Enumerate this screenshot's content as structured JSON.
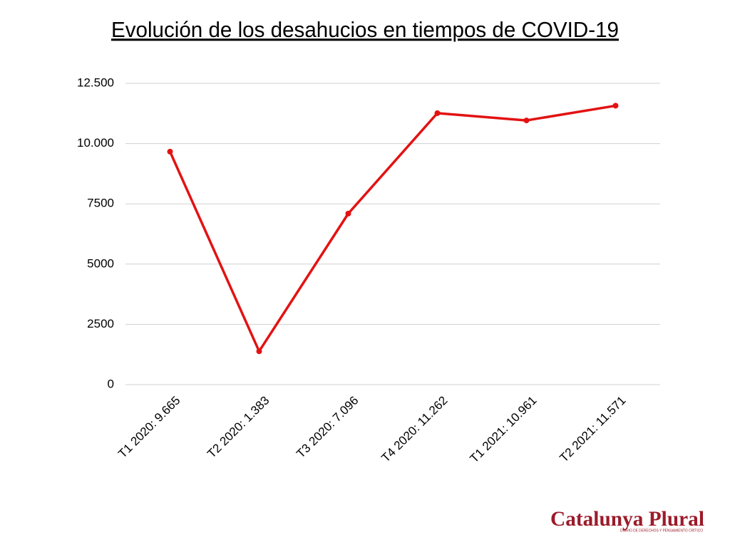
{
  "chart_data": {
    "type": "line",
    "title": "Evolución de los desahucios en tiempos de COVID-19",
    "categories": [
      "T1 2020: 9.665",
      "T2 2020: 1.383",
      "T3 2020: 7.096",
      "T4 2020: 11.262",
      "T1 2021: 10.961",
      "T2 2021: 11.571"
    ],
    "values": [
      9665,
      1383,
      7096,
      11262,
      10961,
      11571
    ],
    "color": "#e31212",
    "ylim": [
      0,
      12500
    ],
    "yticks": [
      0,
      2500,
      5000,
      7500,
      {
        "value": 10000,
        "label": "10.000"
      },
      {
        "value": 12500,
        "label": "12.500"
      }
    ],
    "grid": true
  },
  "logo": {
    "name": "Catalunya Plural",
    "tagline": "DIARIO DE DERECHOS Y PENSAMIENTO CRÍTICO"
  }
}
